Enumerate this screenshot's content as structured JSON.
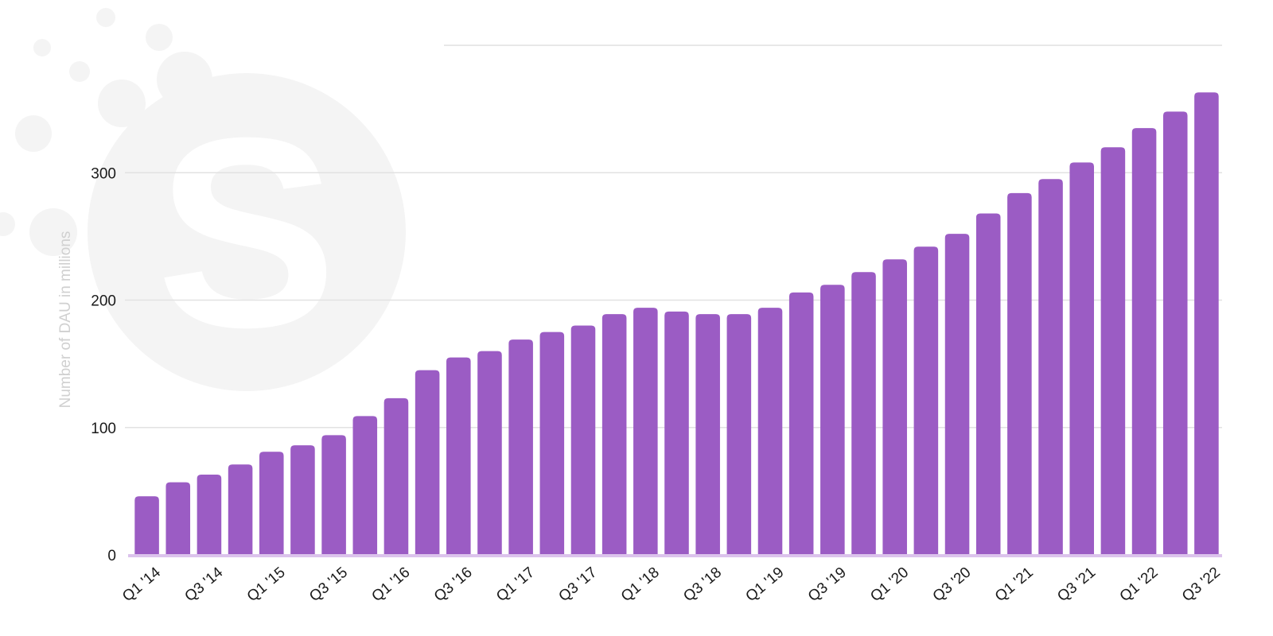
{
  "chart_data": {
    "type": "bar",
    "title": "",
    "xlabel": "",
    "ylabel": "Number of DAU in millions",
    "ylim": [
      0,
      400
    ],
    "yticks": [
      0,
      100,
      200,
      300
    ],
    "grid": true,
    "bar_color": "#9b5cc4",
    "categories": [
      "Q1 '14",
      "Q2 '14",
      "Q3 '14",
      "Q4 '14",
      "Q1 '15",
      "Q2 '15",
      "Q3 '15",
      "Q4 '15",
      "Q1 '16",
      "Q2 '16",
      "Q3 '16",
      "Q4 '16",
      "Q1 '17",
      "Q2 '17",
      "Q3 '17",
      "Q4 '17",
      "Q1 '18",
      "Q2 '18",
      "Q3 '18",
      "Q4 '18",
      "Q1 '19",
      "Q2 '19",
      "Q3 '19",
      "Q4 '19",
      "Q1 '20",
      "Q2 '20",
      "Q3 '20",
      "Q4 '20",
      "Q1 '21",
      "Q2 '21",
      "Q3 '21",
      "Q4 '21",
      "Q1 '22",
      "Q2 '22",
      "Q3 '22"
    ],
    "x_tick_labels": [
      "Q1 '14",
      "Q3 '14",
      "Q1 '15",
      "Q3 '15",
      "Q1 '16",
      "Q3 '16",
      "Q1 '17",
      "Q3 '17",
      "Q1 '18",
      "Q3 '18",
      "Q1 '19",
      "Q3 '19",
      "Q1 '20",
      "Q3 '20",
      "Q1 '21",
      "Q3 '21",
      "Q1 '22",
      "Q3 '22"
    ],
    "values": [
      46,
      57,
      63,
      71,
      81,
      86,
      94,
      109,
      123,
      145,
      155,
      160,
      169,
      175,
      180,
      189,
      194,
      191,
      189,
      189,
      194,
      206,
      212,
      222,
      232,
      242,
      252,
      268,
      284,
      295,
      308,
      320,
      335,
      348,
      363
    ]
  }
}
